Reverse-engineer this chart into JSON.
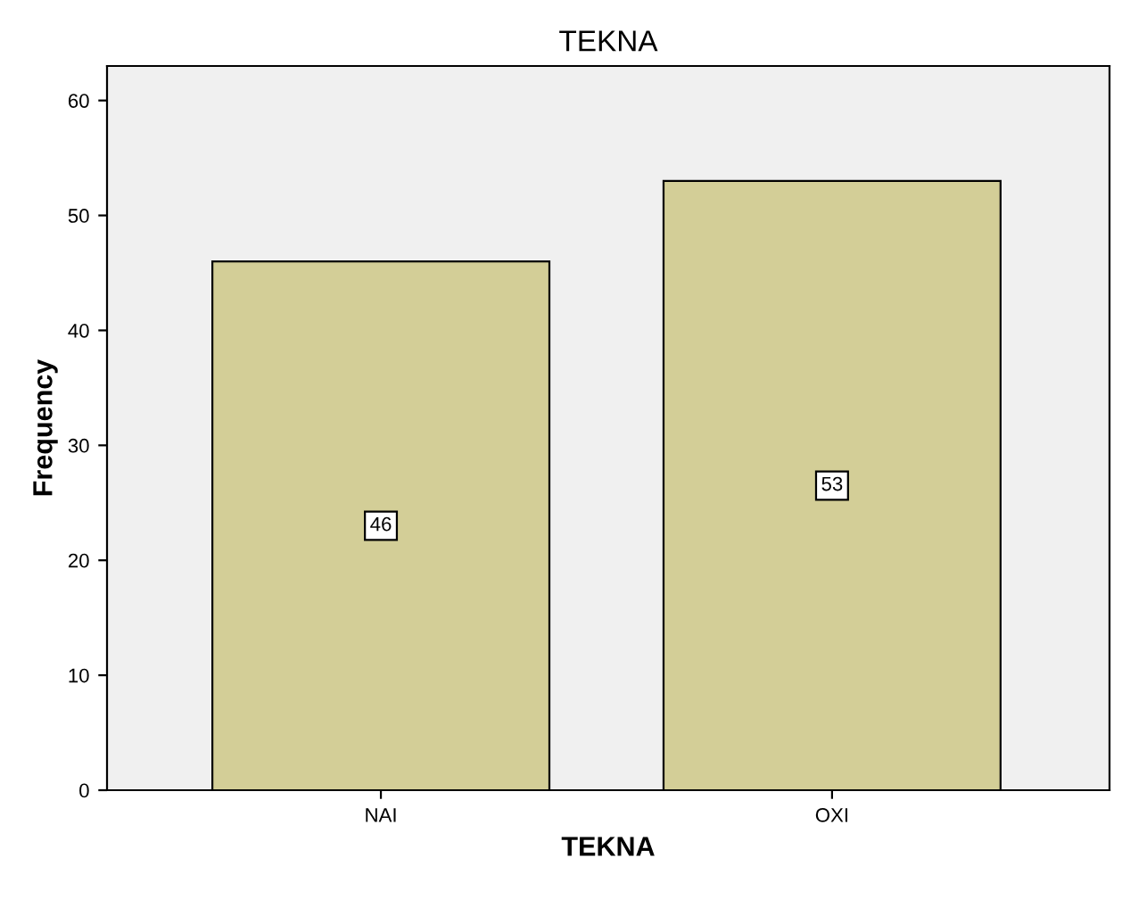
{
  "chart_data": {
    "type": "bar",
    "title": "TEKNA",
    "xlabel": "TEKNA",
    "ylabel": "Frequency",
    "categories": [
      "NAI",
      "OXI"
    ],
    "values": [
      46,
      53
    ],
    "color": "#d3ce97",
    "ylim": [
      0,
      63
    ],
    "yticks": [
      0,
      10,
      20,
      30,
      40,
      50,
      60
    ],
    "data_labels": true,
    "grid": false
  }
}
